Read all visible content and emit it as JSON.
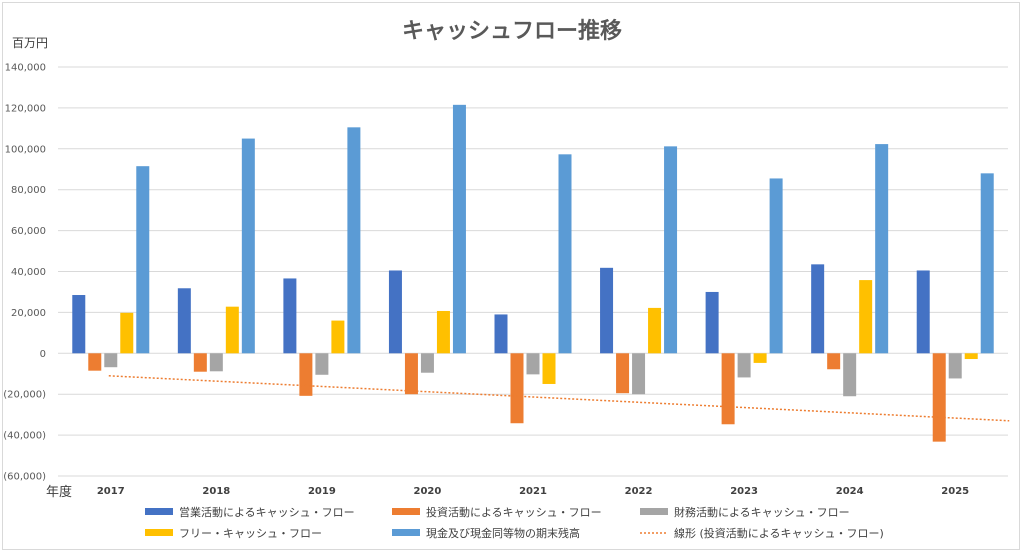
{
  "chart_data": {
    "type": "bar",
    "title": "キャッシュフロー推移",
    "ylabel": "百万円",
    "xlabel": "年度",
    "categories": [
      "2017",
      "2018",
      "2019",
      "2020",
      "2021",
      "2022",
      "2023",
      "2024",
      "2025"
    ],
    "ylim": [
      -60000,
      140000
    ],
    "yticks": [
      -60000,
      -40000,
      -20000,
      0,
      20000,
      40000,
      60000,
      80000,
      100000,
      120000,
      140000
    ],
    "ytick_labels": [
      "(60,000)",
      "(40,000)",
      "(20,000)",
      "0",
      "20,000",
      "40,000",
      "60,000",
      "80,000",
      "100,000",
      "120,000",
      "140,000"
    ],
    "grid": true,
    "legend_position": "bottom",
    "series": [
      {
        "name": "営業活動によるキャッシュ・フロー",
        "color": "#4472C4",
        "values": [
          28500,
          31800,
          36600,
          40500,
          19000,
          41800,
          30000,
          43500,
          40500
        ]
      },
      {
        "name": "投資活動によるキャッシュ・フロー",
        "color": "#ED7D31",
        "values": [
          -8500,
          -9000,
          -20800,
          -20000,
          -34200,
          -19500,
          -34700,
          -7800,
          -43200
        ]
      },
      {
        "name": "財務活動によるキャッシュ・フロー",
        "color": "#A5A5A5",
        "values": [
          -6800,
          -8800,
          -10500,
          -9500,
          -10300,
          -20000,
          -11800,
          -21000,
          -12300
        ]
      },
      {
        "name": "フリー・キャッシュ・フロー",
        "color": "#FFC000",
        "values": [
          19800,
          22800,
          16000,
          20700,
          -15000,
          22200,
          -4700,
          35800,
          -2800
        ]
      },
      {
        "name": "現金及び現金同等物の期末残高",
        "color": "#5B9BD5",
        "values": [
          91500,
          105000,
          110500,
          121500,
          97300,
          101200,
          85500,
          102300,
          88000
        ]
      }
    ],
    "trendline": {
      "name": "線形 (投資活動によるキャッシュ・フロー)",
      "color": "#ED7D31",
      "start": -11000,
      "end": -33000
    }
  }
}
